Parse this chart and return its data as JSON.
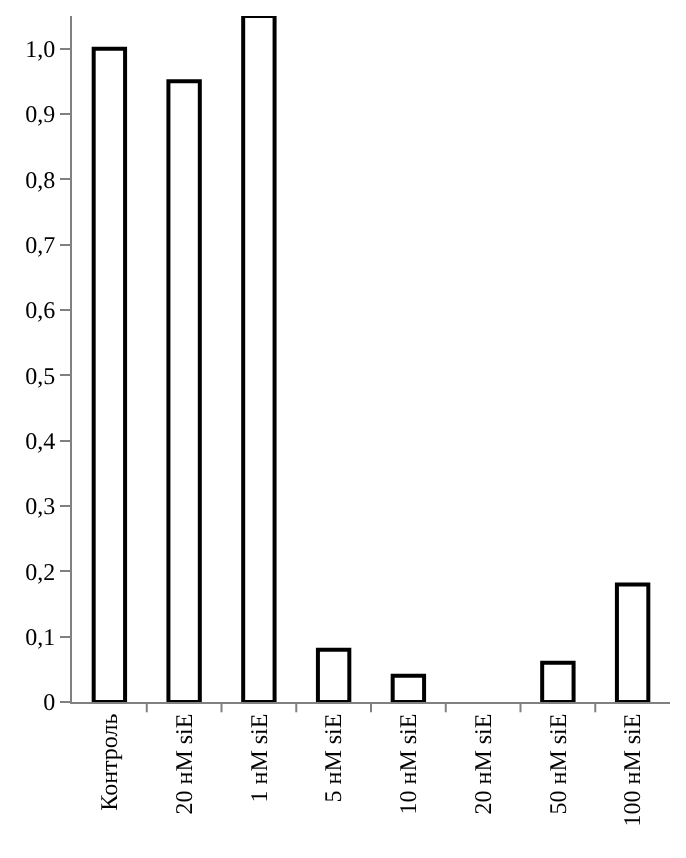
{
  "chart_data": {
    "type": "bar",
    "categories": [
      "Контроль",
      "20 нМ siE",
      "1 нМ siE",
      "5 нМ siE",
      "10 нМ siE",
      "20 нМ siE",
      "50 нМ siE",
      "100 нМ siE"
    ],
    "values": [
      1.0,
      0.95,
      1.05,
      0.08,
      0.04,
      0,
      0.06,
      0.18
    ],
    "color": "#ffffff",
    "ylim": [
      0,
      1.05
    ],
    "yticks": [
      0,
      {
        "value": 0.1,
        "label": "0,1"
      },
      {
        "value": 0.2,
        "label": "0,2"
      },
      {
        "value": 0.3,
        "label": "0,3"
      },
      {
        "value": 0.4,
        "label": "0,4"
      },
      {
        "value": 0.5,
        "label": "0,5"
      },
      {
        "value": 0.6,
        "label": "0,6"
      },
      {
        "value": 0.7,
        "label": "0,7"
      },
      {
        "value": 0.8,
        "label": "0,8"
      },
      {
        "value": 0.9,
        "label": "0,9"
      },
      {
        "value": 1.0,
        "label": "1,0"
      }
    ],
    "grid": false
  }
}
